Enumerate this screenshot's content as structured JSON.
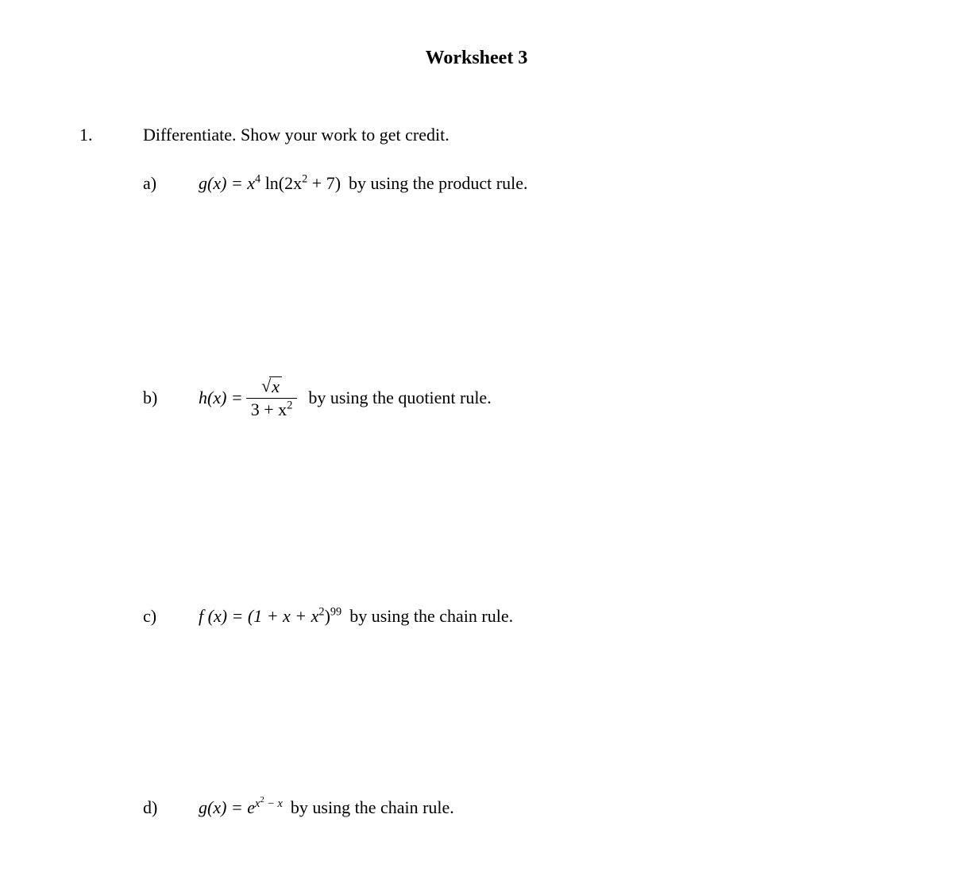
{
  "title": "Worksheet 3",
  "problem": {
    "number": "1.",
    "instruction": "Differentiate. Show your work to get credit."
  },
  "parts": {
    "a": {
      "label": "a)",
      "fn_lhs": "g(x) = x",
      "exp1": "4",
      "mid": " ln(2x",
      "exp2": "2",
      "tail": " + 7)",
      "hint": "by using the product rule."
    },
    "b": {
      "label": "b)",
      "fn_lhs": "h(x) =",
      "num_sqrt_body": "x",
      "den_pre": "3 + x",
      "den_exp": "2",
      "hint": "by using the quotient rule."
    },
    "c": {
      "label": "c)",
      "fn_lhs": "f (x) = (1 + x + x",
      "inner_exp": "2",
      "after_paren": ")",
      "outer_exp": "99",
      "hint": "by using the chain rule."
    },
    "d": {
      "label": "d)",
      "fn_lhs": "g(x) = e",
      "exp_x": "x",
      "exp_sq": "2",
      "exp_tail": " − x",
      "hint": "by using the chain rule."
    }
  },
  "style": {
    "background_color": "#ffffff",
    "text_color": "#000000",
    "title_fontsize": 24,
    "body_fontsize": 22,
    "font_family": "Times New Roman"
  }
}
